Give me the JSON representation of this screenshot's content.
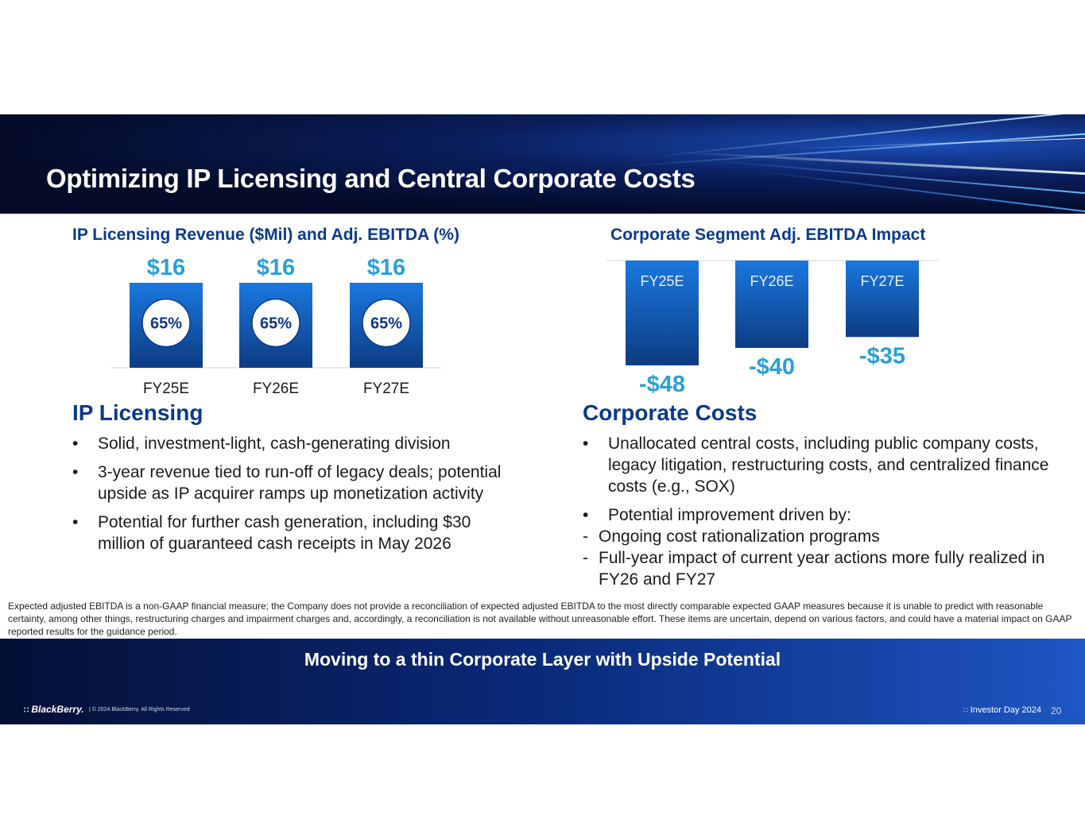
{
  "slide": {
    "title": "Optimizing IP Licensing and Central Corporate Costs"
  },
  "left_chart": {
    "title": "IP Licensing Revenue ($Mil) and Adj. EBITDA (%)"
  },
  "right_chart": {
    "title": "Corporate Segment Adj. EBITDA Impact"
  },
  "chart_data": [
    {
      "type": "bar",
      "title": "IP Licensing Revenue ($Mil) and Adj. EBITDA (%)",
      "categories": [
        "FY25E",
        "FY26E",
        "FY27E"
      ],
      "values": [
        16,
        16,
        16
      ],
      "value_labels": [
        "$16",
        "$16",
        "$16"
      ],
      "ebitda_margin_labels": [
        "65%",
        "65%",
        "65%"
      ],
      "ebitda_margin": [
        65,
        65,
        65
      ],
      "ylim": [
        0,
        16
      ],
      "grid": false,
      "colors": {
        "bar_top": "#1a78e0",
        "bar_bottom": "#0d3c82",
        "value_label": "#2aa0d6",
        "circle_text": "#0b3a8c"
      }
    },
    {
      "type": "bar",
      "title": "Corporate Segment Adj. EBITDA Impact",
      "categories": [
        "FY25E",
        "FY26E",
        "FY27E"
      ],
      "values": [
        -48,
        -40,
        -35
      ],
      "value_labels": [
        "-$48",
        "-$40",
        "-$35"
      ],
      "ylim": [
        -48,
        0
      ],
      "grid": false,
      "colors": {
        "bar_top": "#1a78e0",
        "bar_bottom": "#0d3c82",
        "value_label": "#2aa0d6"
      }
    }
  ],
  "ip_section": {
    "heading": "IP Licensing",
    "bullets": [
      "Solid, investment-light, cash-generating division",
      "3-year revenue tied to run-off of legacy deals; potential upside as IP acquirer ramps up monetization activity",
      "Potential for further cash generation, including $30 million of guaranteed cash receipts in May 2026"
    ]
  },
  "corp_section": {
    "heading": "Corporate Costs",
    "bullet1": "Unallocated central costs, including public company costs, legacy litigation, restructuring costs, and centralized finance costs (e.g., SOX)",
    "bullet2": "Potential improvement driven by:",
    "sub1": "Ongoing cost rationalization programs",
    "sub2": "Full-year impact of current year actions more fully realized in FY26 and FY27"
  },
  "footnote": "Expected adjusted EBITDA is a non-GAAP financial measure; the Company does not provide a reconciliation of expected adjusted EBITDA to the most directly comparable expected GAAP measures because it is unable to predict with reasonable certainty, among other things, restructuring charges and impairment charges and, accordingly, a reconciliation is not available without unreasonable effort. These items are uncertain, depend on various factors, and could have a material impact on GAAP reported results for the guidance period.",
  "banner": {
    "text": "Moving to a thin Corporate Layer with Upside Potential"
  },
  "footer": {
    "brand": "BlackBerry.",
    "copyright": "| © 2024 BlackBerry. All Rights Reserved",
    "event": "Investor Day 2024",
    "page": "20"
  },
  "icons": [
    "blackberry-logo-icon"
  ]
}
